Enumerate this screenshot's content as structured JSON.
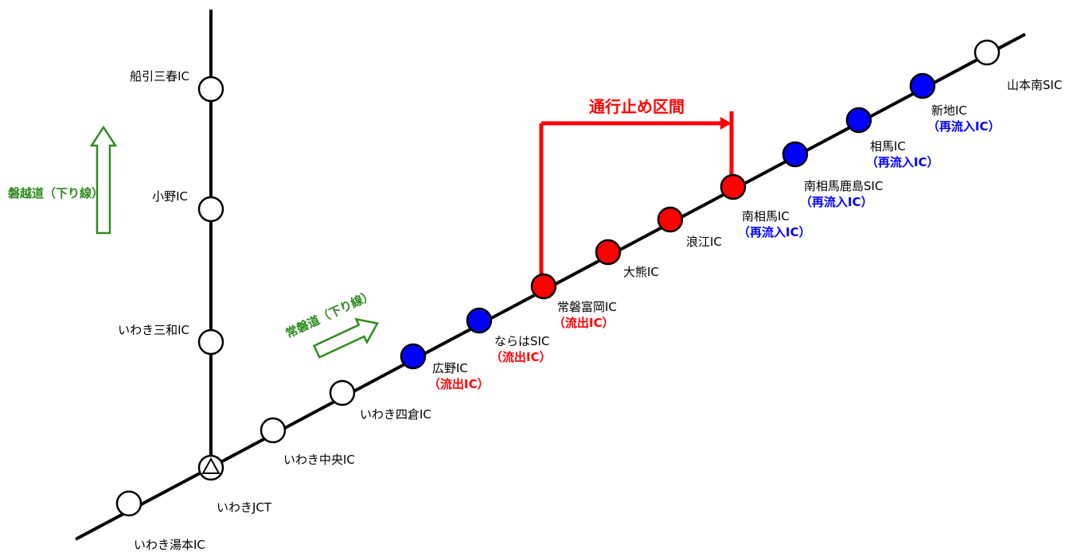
{
  "colors": {
    "open": "#ffffff",
    "closed": "#ff0000",
    "reentry": "#0000ff",
    "line": "#000000",
    "arrow": "#2e8b1e",
    "exit_text": "#ff0000",
    "reentry_text": "#0000ff"
  },
  "closure": {
    "label": "通行止め区間"
  },
  "roads": {
    "banetsu": {
      "label": "磐越道（下り線）"
    },
    "joban": {
      "label": "常磐道（下り線）"
    }
  },
  "banetsu_stations": [
    {
      "name": "船引三春IC",
      "status": "open"
    },
    {
      "name": "小野IC",
      "status": "open"
    },
    {
      "name": "いわき三和IC",
      "status": "open"
    }
  ],
  "junction": {
    "name": "いわきJCT",
    "icon": "triangle-icon"
  },
  "joban_stations": [
    {
      "name": "いわき湯本IC",
      "status": "open",
      "note": ""
    },
    {
      "name": "いわき中央IC",
      "status": "open",
      "note": ""
    },
    {
      "name": "いわき四倉IC",
      "status": "open",
      "note": ""
    },
    {
      "name": "広野IC",
      "status": "reentry",
      "note": "（流出IC）",
      "note_type": "exit"
    },
    {
      "name": "ならはSIC",
      "status": "reentry",
      "note": "（流出IC）",
      "note_type": "exit"
    },
    {
      "name": "常磐富岡IC",
      "status": "closed",
      "note": "（流出IC）",
      "note_type": "exit"
    },
    {
      "name": "大熊IC",
      "status": "closed",
      "note": ""
    },
    {
      "name": "浪江IC",
      "status": "closed",
      "note": ""
    },
    {
      "name": "南相馬IC",
      "status": "closed",
      "note": "（再流入IC）",
      "note_type": "reentry"
    },
    {
      "name": "南相馬鹿島SIC",
      "status": "reentry",
      "note": "（再流入IC）",
      "note_type": "reentry"
    },
    {
      "name": "相馬IC",
      "status": "reentry",
      "note": "（再流入IC）",
      "note_type": "reentry"
    },
    {
      "name": "新地IC",
      "status": "reentry",
      "note": "（再流入IC）",
      "note_type": "reentry"
    },
    {
      "name": "山本南SIC",
      "status": "open",
      "note": ""
    }
  ]
}
